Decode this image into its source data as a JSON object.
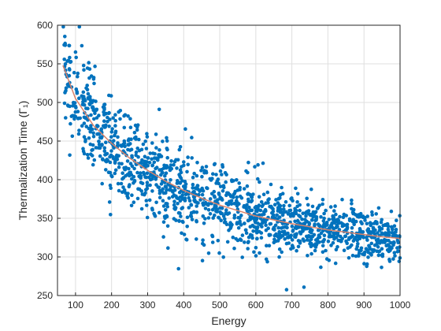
{
  "chart_data": {
    "type": "scatter",
    "title": "",
    "xlabel": "Energy",
    "ylabel": "Thermalization Time (Γ₁)",
    "xlim": [
      50,
      1000
    ],
    "ylim": [
      250,
      600
    ],
    "x_ticks": [
      "100",
      "200",
      "300",
      "400",
      "500",
      "600",
      "700",
      "800",
      "900",
      "1000"
    ],
    "y_ticks": [
      "250",
      "300",
      "350",
      "400",
      "450",
      "500",
      "550",
      "600"
    ],
    "grid": true,
    "legend": "none",
    "series": [
      {
        "marker_color": "#0072BD",
        "x_range": [
          65,
          1000
        ],
        "point_count": 1500,
        "trend_points": [
          {
            "x": 65,
            "y": 548
          },
          {
            "x": 100,
            "y": 505
          },
          {
            "x": 150,
            "y": 470
          },
          {
            "x": 200,
            "y": 447
          },
          {
            "x": 250,
            "y": 428
          },
          {
            "x": 300,
            "y": 412
          },
          {
            "x": 350,
            "y": 398
          },
          {
            "x": 400,
            "y": 386
          },
          {
            "x": 450,
            "y": 376
          },
          {
            "x": 500,
            "y": 367
          },
          {
            "x": 550,
            "y": 360
          },
          {
            "x": 600,
            "y": 353
          },
          {
            "x": 650,
            "y": 348
          },
          {
            "x": 700,
            "y": 343
          },
          {
            "x": 750,
            "y": 339
          },
          {
            "x": 800,
            "y": 335
          },
          {
            "x": 850,
            "y": 332
          },
          {
            "x": 900,
            "y": 329
          },
          {
            "x": 950,
            "y": 326
          },
          {
            "x": 1000,
            "y": 324
          }
        ]
      }
    ],
    "fit_line": {
      "color": "#D9826A",
      "points": [
        {
          "x": 65,
          "y": 548
        },
        {
          "x": 100,
          "y": 505
        },
        {
          "x": 150,
          "y": 470
        },
        {
          "x": 200,
          "y": 447
        },
        {
          "x": 250,
          "y": 428
        },
        {
          "x": 300,
          "y": 412
        },
        {
          "x": 350,
          "y": 398
        },
        {
          "x": 400,
          "y": 386
        },
        {
          "x": 450,
          "y": 376
        },
        {
          "x": 500,
          "y": 367
        },
        {
          "x": 550,
          "y": 360
        },
        {
          "x": 600,
          "y": 353
        },
        {
          "x": 650,
          "y": 348
        },
        {
          "x": 700,
          "y": 343
        },
        {
          "x": 750,
          "y": 339
        },
        {
          "x": 800,
          "y": 335
        },
        {
          "x": 850,
          "y": 332
        },
        {
          "x": 900,
          "y": 329
        },
        {
          "x": 950,
          "y": 326
        },
        {
          "x": 1000,
          "y": 324
        }
      ]
    }
  }
}
